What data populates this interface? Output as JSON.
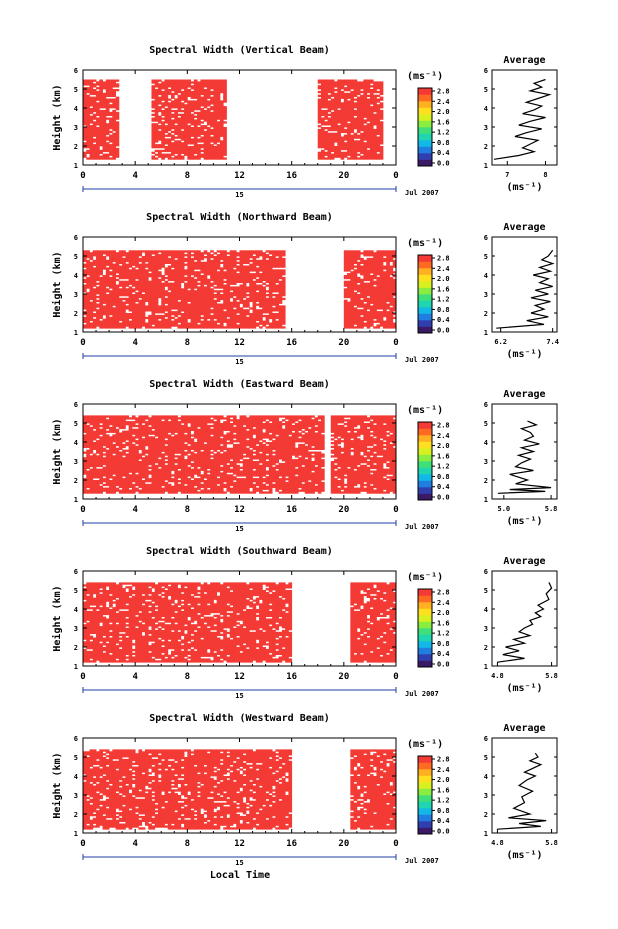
{
  "page": {
    "local_time_label": "Local Time"
  },
  "colorbar": {
    "unit_label": "(ms⁻¹)",
    "colors": [
      "#3a1a66",
      "#2f3fb0",
      "#1f7ee0",
      "#12b8e6",
      "#1fd6b0",
      "#3fe07a",
      "#8aee40",
      "#d8f020",
      "#ffe020",
      "#ffb020",
      "#ff6a22",
      "#f43a34"
    ]
  },
  "chart_data": [
    {
      "panel": "vertical",
      "type": "heatmap",
      "title": "Spectral Width (Vertical Beam)",
      "ylabel": "Height (km)",
      "x_ticks": [
        "0",
        "4",
        "8",
        "12",
        "16",
        "20",
        "0"
      ],
      "xlim": [
        0,
        24
      ],
      "ylim": [
        1,
        6
      ],
      "y_ticks": [
        "1",
        "2",
        "3",
        "4",
        "5",
        "6"
      ],
      "date_label": "15",
      "month_label": "Jul 2007",
      "fill_color": "#f43a34",
      "data_x_range": [
        0,
        24
      ],
      "data_y_range": [
        1.3,
        5.5
      ],
      "gaps": [
        [
          2.8,
          5.3
        ],
        [
          11.0,
          12.7
        ],
        [
          12.7,
          16.0
        ],
        [
          16.0,
          18.0
        ],
        [
          23.0,
          24.0
        ]
      ],
      "colorbar_ticks": [
        "2.8",
        "2.4",
        "2.0",
        "1.6",
        "1.2",
        "0.8",
        "0.4",
        "0.0"
      ],
      "profile": {
        "title": "Average",
        "xlabel": "(ms⁻¹)",
        "x_ticks": [
          "7",
          "8"
        ],
        "xlim": [
          6.6,
          8.3
        ],
        "x_values": [
          6.65,
          7.3,
          7.7,
          7.4,
          7.6,
          7.8,
          7.2,
          7.5,
          7.9,
          7.3,
          7.6,
          8.0,
          7.4,
          7.7,
          7.9,
          7.5,
          7.8,
          8.1,
          7.6,
          7.9,
          7.7,
          8.0
        ],
        "y_values": [
          1.3,
          1.5,
          1.7,
          1.9,
          2.1,
          2.3,
          2.5,
          2.7,
          2.9,
          3.1,
          3.3,
          3.5,
          3.7,
          3.9,
          4.1,
          4.3,
          4.5,
          4.7,
          4.9,
          5.1,
          5.3,
          5.5
        ]
      }
    },
    {
      "panel": "northward",
      "type": "heatmap",
      "title": "Spectral Width (Northward Beam)",
      "ylabel": "Height (km)",
      "x_ticks": [
        "0",
        "4",
        "8",
        "12",
        "16",
        "20",
        "0"
      ],
      "xlim": [
        0,
        24
      ],
      "ylim": [
        1,
        6
      ],
      "y_ticks": [
        "1",
        "2",
        "3",
        "4",
        "5",
        "6"
      ],
      "date_label": "15",
      "month_label": "Jul 2007",
      "fill_color": "#f43a34",
      "data_x_range": [
        0,
        24
      ],
      "data_y_range": [
        1.2,
        5.3
      ],
      "gaps": [
        [
          15.5,
          20.0
        ]
      ],
      "colorbar_ticks": [
        "2.8",
        "2.4",
        "2.0",
        "1.6",
        "1.2",
        "0.8",
        "0.4",
        "0.0"
      ],
      "profile": {
        "title": "Average",
        "xlabel": "(ms⁻¹)",
        "x_ticks": [
          "6.2",
          "7.4"
        ],
        "xlim": [
          6.0,
          7.5
        ],
        "x_values": [
          6.1,
          7.2,
          6.8,
          7.3,
          6.9,
          7.2,
          7.0,
          7.35,
          6.9,
          7.3,
          7.0,
          7.4,
          7.1,
          7.3,
          6.95,
          7.35,
          7.1,
          7.4,
          7.15,
          7.3,
          7.4
        ],
        "y_values": [
          1.2,
          1.4,
          1.6,
          1.8,
          2.0,
          2.2,
          2.4,
          2.6,
          2.8,
          3.0,
          3.2,
          3.4,
          3.6,
          3.8,
          4.0,
          4.2,
          4.4,
          4.6,
          4.8,
          5.0,
          5.3
        ]
      }
    },
    {
      "panel": "eastward",
      "type": "heatmap",
      "title": "Spectral Width (Eastward Beam)",
      "ylabel": "Height (km)",
      "x_ticks": [
        "0",
        "4",
        "8",
        "12",
        "16",
        "20",
        "0"
      ],
      "xlim": [
        0,
        24
      ],
      "ylim": [
        1,
        6
      ],
      "y_ticks": [
        "1",
        "2",
        "3",
        "4",
        "5",
        "6"
      ],
      "date_label": "15",
      "month_label": "Jul 2007",
      "fill_color": "#f43a34",
      "data_x_range": [
        0,
        24
      ],
      "data_y_range": [
        1.3,
        5.4
      ],
      "gaps": [
        [
          18.5,
          19.0
        ]
      ],
      "colorbar_ticks": [
        "2.8",
        "2.4",
        "2.0",
        "1.6",
        "1.2",
        "0.8",
        "0.4",
        "0.0"
      ],
      "profile": {
        "title": "Average",
        "xlabel": "(ms⁻¹)",
        "x_ticks": [
          "5.0",
          "5.8"
        ],
        "xlim": [
          4.8,
          5.9
        ],
        "x_values": [
          4.9,
          5.7,
          5.1,
          5.8,
          5.2,
          5.4,
          5.1,
          5.5,
          5.2,
          5.3,
          5.45,
          5.25,
          5.5,
          5.3,
          5.6,
          5.35,
          5.5,
          5.45,
          5.3,
          5.55,
          5.4
        ],
        "y_values": [
          1.3,
          1.4,
          1.5,
          1.6,
          1.8,
          2.0,
          2.3,
          2.5,
          2.7,
          2.9,
          3.1,
          3.3,
          3.5,
          3.7,
          3.9,
          4.1,
          4.3,
          4.5,
          4.7,
          4.9,
          5.1
        ]
      }
    },
    {
      "panel": "southward",
      "type": "heatmap",
      "title": "Spectral Width (Southward Beam)",
      "ylabel": "Height (km)",
      "x_ticks": [
        "0",
        "4",
        "8",
        "12",
        "16",
        "20",
        "0"
      ],
      "xlim": [
        0,
        24
      ],
      "ylim": [
        1,
        6
      ],
      "y_ticks": [
        "1",
        "2",
        "3",
        "4",
        "5",
        "6"
      ],
      "date_label": "15",
      "month_label": "Jul 2007",
      "fill_color": "#f43a34",
      "data_x_range": [
        0,
        24
      ],
      "data_y_range": [
        1.2,
        5.4
      ],
      "gaps": [
        [
          16.0,
          20.5
        ]
      ],
      "colorbar_ticks": [
        "2.8",
        "2.4",
        "2.0",
        "1.6",
        "1.2",
        "0.8",
        "0.4",
        "0.0"
      ],
      "profile": {
        "title": "Average",
        "xlabel": "(ms⁻¹)",
        "x_ticks": [
          "4.8",
          "5.8"
        ],
        "xlim": [
          4.7,
          5.9
        ],
        "x_values": [
          4.8,
          5.3,
          4.9,
          5.2,
          4.95,
          5.3,
          5.1,
          5.4,
          5.2,
          5.3,
          5.45,
          5.4,
          5.6,
          5.5,
          5.65,
          5.55,
          5.75,
          5.7,
          5.8,
          5.75
        ],
        "y_values": [
          1.2,
          1.4,
          1.6,
          1.8,
          2.0,
          2.2,
          2.4,
          2.6,
          2.8,
          3.0,
          3.2,
          3.4,
          3.6,
          3.8,
          4.0,
          4.2,
          4.5,
          4.8,
          5.1,
          5.4
        ]
      }
    },
    {
      "panel": "westward",
      "type": "heatmap",
      "title": "Spectral Width (Westward Beam)",
      "ylabel": "Height (km)",
      "x_ticks": [
        "0",
        "4",
        "8",
        "12",
        "16",
        "20",
        "0"
      ],
      "xlim": [
        0,
        24
      ],
      "ylim": [
        1,
        6
      ],
      "y_ticks": [
        "1",
        "2",
        "3",
        "4",
        "5",
        "6"
      ],
      "date_label": "15",
      "month_label": "Jul 2007",
      "fill_color": "#f43a34",
      "data_x_range": [
        0,
        24
      ],
      "data_y_range": [
        1.2,
        5.4
      ],
      "gaps": [
        [
          16.0,
          20.5
        ]
      ],
      "colorbar_ticks": [
        "2.8",
        "2.4",
        "2.0",
        "1.6",
        "1.2",
        "0.8",
        "0.4",
        "0.0"
      ],
      "profile": {
        "title": "Average",
        "xlabel": "(ms⁻¹)",
        "x_ticks": [
          "4.8",
          "5.8"
        ],
        "xlim": [
          4.7,
          5.9
        ],
        "x_values": [
          4.8,
          5.6,
          5.2,
          5.7,
          5.0,
          5.4,
          5.1,
          5.3,
          5.25,
          5.45,
          5.2,
          5.35,
          5.5,
          5.3,
          5.45,
          5.6,
          5.4,
          5.55,
          5.5
        ],
        "y_values": [
          1.2,
          1.35,
          1.5,
          1.65,
          1.8,
          2.0,
          2.3,
          2.6,
          2.9,
          3.2,
          3.5,
          3.8,
          4.0,
          4.2,
          4.4,
          4.6,
          4.8,
          5.0,
          5.2
        ]
      }
    }
  ]
}
